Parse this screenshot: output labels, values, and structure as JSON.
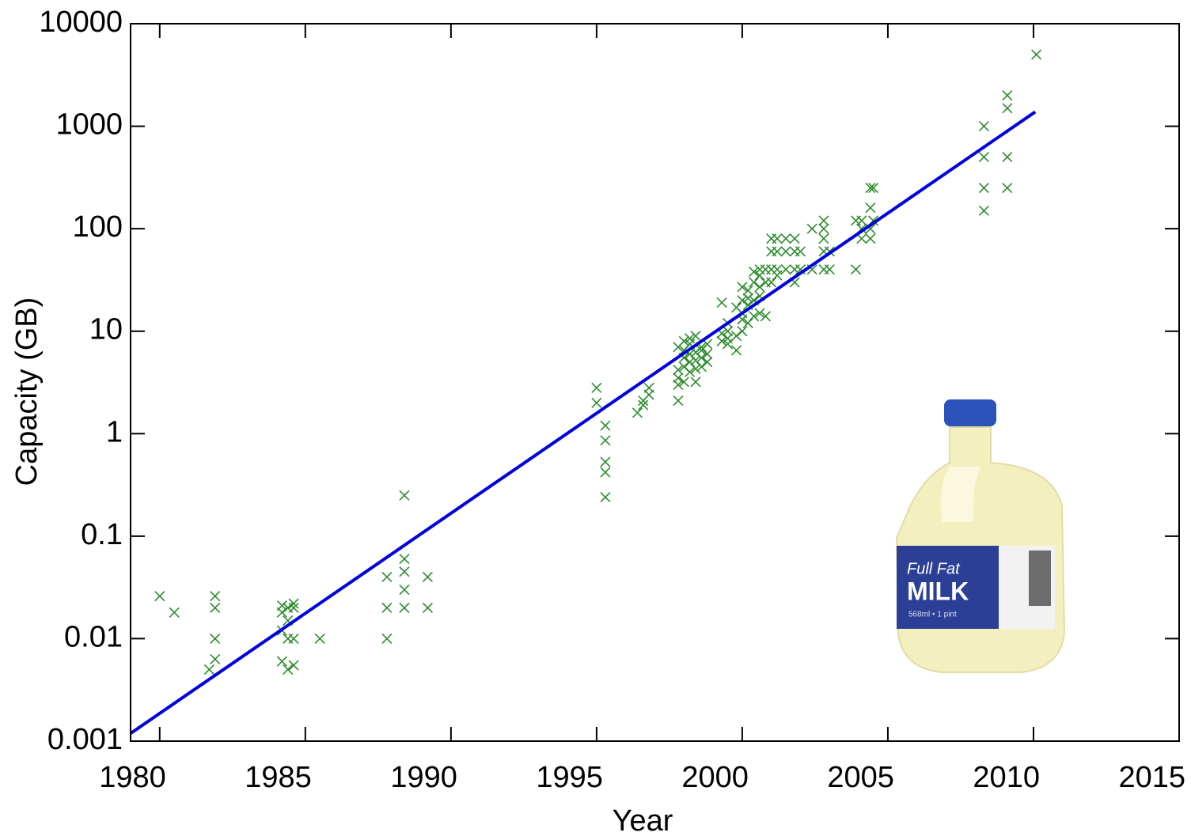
{
  "chart_data": {
    "type": "scatter",
    "x_label": "Year",
    "y_label": "Capacity (GB)",
    "xlim": [
      1979,
      2015
    ],
    "ylim": [
      0.001,
      10000
    ],
    "y_scale": "log",
    "xticks": [
      1980,
      1985,
      1990,
      1995,
      2000,
      2005,
      2010,
      2015
    ],
    "yticks": [
      0.001,
      0.01,
      0.1,
      1,
      10,
      100,
      1000,
      10000
    ],
    "series": [
      {
        "type": "scatter",
        "color": "#2e8b2e",
        "x": [
          1980.0,
          1980.5,
          1981.9,
          1981.9,
          1981.9,
          1981.9,
          1981.7,
          1984.2,
          1984.2,
          1984.2,
          1984.2,
          1984.4,
          1984.4,
          1984.4,
          1984.4,
          1984.6,
          1984.6,
          1984.6,
          1984.6,
          1985.5,
          1987.8,
          1987.8,
          1987.8,
          1988.4,
          1988.4,
          1988.4,
          1988.4,
          1988.4,
          1989.2,
          1989.2,
          1995.0,
          1995.0,
          1995.3,
          1995.3,
          1995.3,
          1995.3,
          1995.3,
          1996.4,
          1996.6,
          1996.6,
          1996.8,
          1996.8,
          1997.8,
          1997.8,
          1997.8,
          1997.8,
          1997.8,
          1998.0,
          1998.0,
          1998.0,
          1998.0,
          1998.0,
          1998.2,
          1998.2,
          1998.2,
          1998.2,
          1998.2,
          1998.4,
          1998.4,
          1998.4,
          1998.4,
          1998.4,
          1998.6,
          1998.6,
          1998.6,
          1998.6,
          1998.8,
          1998.8,
          1998.8,
          1999.3,
          1999.3,
          1999.3,
          1999.5,
          1999.5,
          1999.5,
          1999.5,
          1999.8,
          1999.8,
          1999.8,
          2000.0,
          2000.0,
          2000.0,
          2000.0,
          2000.0,
          2000.2,
          2000.2,
          2000.2,
          2000.2,
          2000.4,
          2000.4,
          2000.4,
          2000.4,
          2000.6,
          2000.6,
          2000.6,
          2000.6,
          2000.6,
          2000.8,
          2000.8,
          2000.8,
          2001.0,
          2001.0,
          2001.0,
          2001.0,
          2001.2,
          2001.2,
          2001.2,
          2001.2,
          2001.5,
          2001.5,
          2001.5,
          2001.8,
          2001.8,
          2001.8,
          2001.8,
          2002.0,
          2002.0,
          2002.4,
          2002.4,
          2002.8,
          2002.8,
          2002.8,
          2002.8,
          2002.8,
          2003.0,
          2003.0,
          2003.9,
          2003.9,
          2004.1,
          2004.1,
          2004.1,
          2004.4,
          2004.4,
          2004.4,
          2004.4,
          2004.5,
          2004.5,
          2008.3,
          2008.3,
          2008.3,
          2008.3,
          2009.1,
          2009.1,
          2009.1,
          2009.1,
          2010.1
        ],
        "values": [
          0.026,
          0.018,
          0.026,
          0.02,
          0.01,
          0.0063,
          0.005,
          0.021,
          0.018,
          0.012,
          0.006,
          0.02,
          0.015,
          0.01,
          0.005,
          0.022,
          0.02,
          0.01,
          0.0055,
          0.01,
          0.04,
          0.02,
          0.01,
          0.25,
          0.06,
          0.045,
          0.03,
          0.02,
          0.04,
          0.02,
          2.8,
          2.0,
          1.2,
          0.86,
          0.53,
          0.42,
          0.24,
          1.6,
          1.9,
          2.1,
          2.8,
          2.4,
          2.1,
          3.0,
          3.5,
          4.2,
          7.0,
          3.2,
          4.5,
          5.5,
          6.5,
          8.0,
          4.0,
          5.0,
          6.0,
          7.5,
          8.5,
          3.2,
          4.3,
          5.2,
          6.2,
          9.0,
          4.5,
          5.5,
          6.5,
          7.0,
          5.0,
          6.0,
          7.5,
          8.0,
          9.5,
          19,
          7.5,
          8.5,
          10,
          12,
          6.5,
          9,
          17,
          10,
          13,
          15,
          20,
          27,
          12,
          18,
          21,
          25,
          14,
          20,
          30,
          38,
          15,
          22,
          27,
          35,
          40,
          14,
          30,
          40,
          30,
          40,
          60,
          80,
          35,
          40,
          60,
          80,
          40,
          60,
          80,
          30,
          40,
          60,
          80,
          40,
          60,
          40,
          100,
          40,
          60,
          80,
          100,
          120,
          40,
          60,
          40,
          120,
          80,
          100,
          120,
          80,
          100,
          160,
          250,
          120,
          250,
          1000,
          500,
          250,
          150,
          2000,
          1500,
          500,
          250,
          5000
        ]
      },
      {
        "type": "line",
        "color": "#0000dd",
        "x": [
          1979,
          2010.06
        ],
        "values": [
          0.00119,
          1380
        ]
      }
    ]
  },
  "inset": {
    "label_top": "Full Fat",
    "label_main": "MILK",
    "label_volume": "568ml • 1 pint"
  }
}
